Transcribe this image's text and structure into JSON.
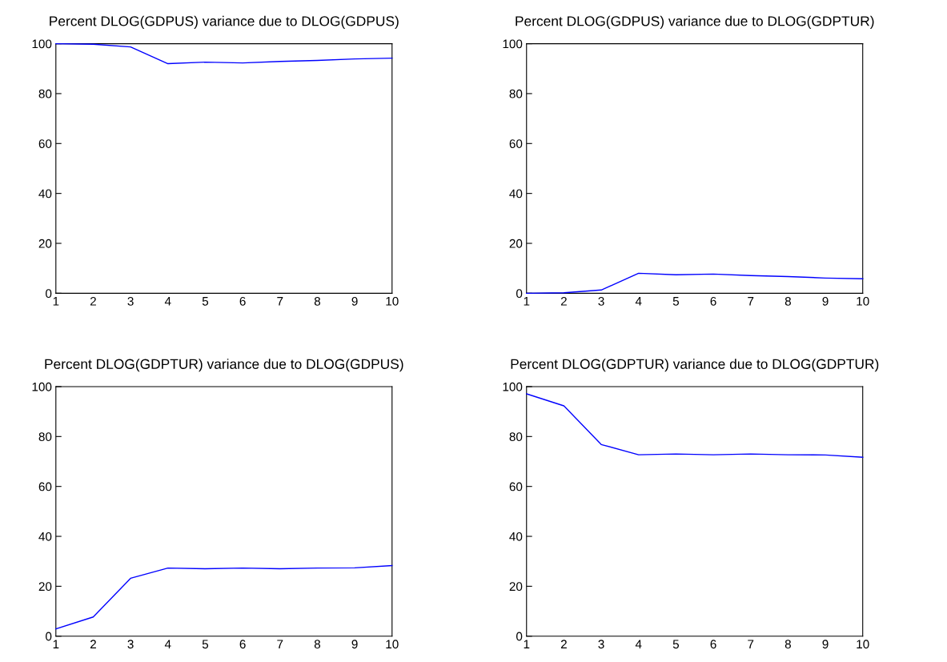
{
  "chart_data": [
    {
      "type": "line",
      "title": "Percent DLOG(GDPUS) variance due to DLOG(GDPUS)",
      "x": [
        1,
        2,
        3,
        4,
        5,
        6,
        7,
        8,
        9,
        10
      ],
      "series": [
        {
          "color": "#0000ff",
          "values": [
            100,
            99.8,
            98.7,
            92,
            92.6,
            92.3,
            92.9,
            93.3,
            93.9,
            94.2
          ]
        }
      ],
      "xlim": [
        1,
        10
      ],
      "xticks": [
        1,
        2,
        3,
        4,
        5,
        6,
        7,
        8,
        9,
        10
      ],
      "ylim": [
        0,
        100
      ],
      "yticks": [
        0,
        20,
        40,
        60,
        80,
        100
      ],
      "grid": false
    },
    {
      "type": "line",
      "title": "Percent DLOG(GDPUS) variance due to DLOG(GDPTUR)",
      "x": [
        1,
        2,
        3,
        4,
        5,
        6,
        7,
        8,
        9,
        10
      ],
      "series": [
        {
          "color": "#0000ff",
          "values": [
            0,
            0.2,
            1.3,
            8,
            7.4,
            7.7,
            7.1,
            6.7,
            6.1,
            5.8
          ]
        }
      ],
      "xlim": [
        1,
        10
      ],
      "xticks": [
        1,
        2,
        3,
        4,
        5,
        6,
        7,
        8,
        9,
        10
      ],
      "ylim": [
        0,
        100
      ],
      "yticks": [
        0,
        20,
        40,
        60,
        80,
        100
      ],
      "grid": false
    },
    {
      "type": "line",
      "title": "Percent DLOG(GDPTUR) variance due to DLOG(GDPUS)",
      "x": [
        1,
        2,
        3,
        4,
        5,
        6,
        7,
        8,
        9,
        10
      ],
      "series": [
        {
          "color": "#0000ff",
          "values": [
            2.9,
            7.7,
            23.2,
            27.3,
            27,
            27.3,
            27,
            27.3,
            27.4,
            28.3
          ]
        }
      ],
      "xlim": [
        1,
        10
      ],
      "xticks": [
        1,
        2,
        3,
        4,
        5,
        6,
        7,
        8,
        9,
        10
      ],
      "ylim": [
        0,
        100
      ],
      "yticks": [
        0,
        20,
        40,
        60,
        80,
        100
      ],
      "grid": false
    },
    {
      "type": "line",
      "title": "Percent DLOG(GDPTUR) variance due to DLOG(GDPTUR)",
      "x": [
        1,
        2,
        3,
        4,
        5,
        6,
        7,
        8,
        9,
        10
      ],
      "series": [
        {
          "color": "#0000ff",
          "values": [
            97.1,
            92.3,
            76.8,
            72.7,
            73,
            72.7,
            73,
            72.7,
            72.6,
            71.7
          ]
        }
      ],
      "xlim": [
        1,
        10
      ],
      "xticks": [
        1,
        2,
        3,
        4,
        5,
        6,
        7,
        8,
        9,
        10
      ],
      "ylim": [
        0,
        100
      ],
      "yticks": [
        0,
        20,
        40,
        60,
        80,
        100
      ],
      "grid": false
    }
  ]
}
